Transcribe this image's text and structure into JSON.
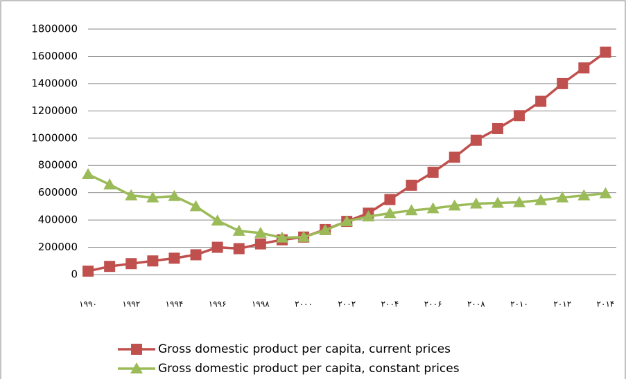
{
  "chart_data": {
    "type": "line",
    "categories": [
      "۱۹۹۰",
      null,
      "۱۹۹۲",
      null,
      "۱۹۹۴",
      null,
      "۱۹۹۶",
      null,
      "۱۹۹۸",
      null,
      "۲۰۰۰",
      null,
      "۲۰۰۲",
      null,
      "۲۰۰۴",
      null,
      "۲۰۰۶",
      null,
      "۲۰۰۸",
      null,
      "۲۰۱۰",
      null,
      "۲۰۱۲",
      null,
      "۲۰۱۴"
    ],
    "series": [
      {
        "name": "Gross domestic product per capita, current prices",
        "color": "#c0504d",
        "marker": "square",
        "values": [
          25000,
          60000,
          80000,
          100000,
          120000,
          145000,
          200000,
          190000,
          225000,
          255000,
          275000,
          330000,
          390000,
          450000,
          550000,
          655000,
          750000,
          860000,
          985000,
          1070000,
          1165000,
          1270000,
          1400000,
          1515000,
          1630000
        ]
      },
      {
        "name": "Gross domestic product per capita, constant prices",
        "color": "#9bbb59",
        "marker": "triangle",
        "values": [
          735000,
          660000,
          580000,
          565000,
          575000,
          500000,
          395000,
          320000,
          305000,
          270000,
          275000,
          325000,
          390000,
          425000,
          450000,
          470000,
          485000,
          505000,
          520000,
          525000,
          530000,
          545000,
          565000,
          580000,
          595000
        ]
      }
    ],
    "ylim": [
      0,
      1800000
    ],
    "yticks": [
      0,
      200000,
      400000,
      600000,
      800000,
      1000000,
      1200000,
      1400000,
      1600000,
      1800000
    ],
    "grid": true,
    "legend": "bottom"
  }
}
